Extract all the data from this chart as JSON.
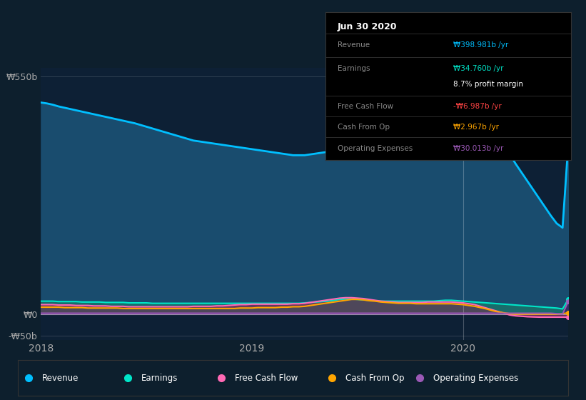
{
  "bg_color": "#0d1f2d",
  "plot_bg_color": "#0d2035",
  "title": "Jun 30 2020",
  "x_ticks": [
    0,
    36,
    72
  ],
  "x_tick_labels": [
    "2018",
    "2019",
    "2020"
  ],
  "legend": [
    {
      "label": "Revenue",
      "color": "#00bfff"
    },
    {
      "label": "Earnings",
      "color": "#00e5c8"
    },
    {
      "label": "Free Cash Flow",
      "color": "#ff69b4"
    },
    {
      "label": "Cash From Op",
      "color": "#ffa500"
    },
    {
      "label": "Operating Expenses",
      "color": "#9b59b6"
    }
  ],
  "tooltip": {
    "title": "Jun 30 2020",
    "rows": [
      {
        "label": "Revenue",
        "value": "₩398.981b /yr",
        "value_color": "#00bfff"
      },
      {
        "label": "Earnings",
        "value": "₩34.760b /yr",
        "value_color": "#00e5c8"
      },
      {
        "label": "",
        "value": "8.7% profit margin",
        "value_color": "#ffffff"
      },
      {
        "label": "Free Cash Flow",
        "value": "-₩6.987b /yr",
        "value_color": "#ff4444"
      },
      {
        "label": "Cash From Op",
        "value": "₩2.967b /yr",
        "value_color": "#ffa500"
      },
      {
        "label": "Operating Expenses",
        "value": "₩30.013b /yr",
        "value_color": "#9b59b6"
      }
    ]
  },
  "n_points": 91,
  "revenue": [
    490,
    488,
    485,
    481,
    478,
    475,
    472,
    469,
    466,
    463,
    460,
    457,
    454,
    451,
    448,
    445,
    442,
    438,
    434,
    430,
    426,
    422,
    418,
    414,
    410,
    406,
    402,
    400,
    398,
    396,
    394,
    392,
    390,
    388,
    386,
    384,
    382,
    380,
    378,
    376,
    374,
    372,
    370,
    368,
    368,
    368,
    370,
    372,
    374,
    376,
    378,
    382,
    386,
    390,
    396,
    402,
    408,
    415,
    420,
    424,
    428,
    432,
    436,
    440,
    444,
    448,
    452,
    456,
    460,
    463,
    464,
    463,
    462,
    460,
    455,
    448,
    438,
    425,
    408,
    390,
    370,
    348,
    328,
    308,
    288,
    268,
    248,
    228,
    210,
    200,
    399
  ],
  "earnings": [
    30,
    30,
    30,
    29,
    29,
    29,
    29,
    28,
    28,
    28,
    28,
    27,
    27,
    27,
    27,
    26,
    26,
    26,
    26,
    25,
    25,
    25,
    25,
    25,
    25,
    25,
    25,
    25,
    25,
    25,
    25,
    25,
    25,
    25,
    25,
    25,
    25,
    25,
    25,
    25,
    25,
    25,
    25,
    25,
    25,
    26,
    27,
    28,
    29,
    30,
    32,
    34,
    35,
    35,
    34,
    33,
    32,
    31,
    30,
    30,
    30,
    30,
    30,
    30,
    30,
    30,
    30,
    30,
    31,
    32,
    32,
    31,
    30,
    29,
    28,
    27,
    26,
    25,
    24,
    23,
    22,
    21,
    20,
    19,
    18,
    17,
    16,
    15,
    14,
    12,
    35
  ],
  "free_cash_flow": [
    22,
    22,
    22,
    21,
    21,
    21,
    20,
    20,
    20,
    19,
    19,
    19,
    18,
    18,
    18,
    17,
    17,
    17,
    17,
    17,
    17,
    17,
    17,
    17,
    17,
    17,
    18,
    18,
    18,
    18,
    19,
    19,
    20,
    21,
    22,
    22,
    23,
    23,
    23,
    23,
    23,
    23,
    23,
    24,
    24,
    25,
    27,
    29,
    31,
    33,
    35,
    37,
    38,
    38,
    37,
    36,
    34,
    32,
    30,
    29,
    28,
    27,
    27,
    27,
    27,
    27,
    28,
    28,
    28,
    28,
    28,
    27,
    26,
    24,
    22,
    18,
    14,
    10,
    6,
    2,
    -2,
    -4,
    -5,
    -6,
    -6.5,
    -7,
    -7,
    -7,
    -7,
    -7,
    -7
  ],
  "cash_from_op": [
    16,
    16,
    16,
    16,
    15,
    15,
    15,
    15,
    14,
    14,
    14,
    14,
    14,
    14,
    13,
    13,
    13,
    13,
    13,
    13,
    13,
    13,
    13,
    13,
    13,
    13,
    13,
    13,
    13,
    13,
    13,
    13,
    13,
    13,
    14,
    14,
    14,
    15,
    15,
    15,
    15,
    16,
    16,
    17,
    17,
    18,
    20,
    22,
    24,
    26,
    28,
    30,
    32,
    34,
    34,
    33,
    31,
    30,
    28,
    27,
    26,
    25,
    25,
    25,
    24,
    24,
    24,
    24,
    24,
    24,
    24,
    23,
    22,
    20,
    18,
    15,
    12,
    8,
    5,
    3,
    1,
    0,
    0,
    0,
    0,
    0,
    0,
    0,
    0,
    1,
    3
  ],
  "op_expenses": [
    2,
    2,
    2,
    2,
    2,
    2,
    2,
    2,
    2,
    2,
    2,
    2,
    2,
    2,
    2,
    2,
    2,
    2,
    2,
    2,
    2,
    2,
    2,
    2,
    2,
    2,
    2,
    2,
    2,
    2,
    2,
    2,
    2,
    2,
    2,
    2,
    2,
    2,
    2,
    2,
    2,
    2,
    2,
    2,
    2,
    2,
    2,
    2,
    2,
    2,
    2,
    2,
    2,
    2,
    2,
    2,
    2,
    2,
    2,
    2,
    2,
    2,
    2,
    2,
    2,
    2,
    2,
    2,
    2,
    2,
    2,
    2,
    2,
    2,
    2,
    2,
    2,
    2,
    2,
    2,
    2,
    2,
    2,
    2,
    2,
    2,
    2,
    2,
    1,
    0,
    30
  ],
  "highlight_x": 72,
  "ylim": [
    -60,
    570
  ],
  "ytick_positions": [
    550,
    0,
    -50
  ],
  "ytick_labels": [
    "₩550b",
    "₩0",
    "-₩50b"
  ]
}
